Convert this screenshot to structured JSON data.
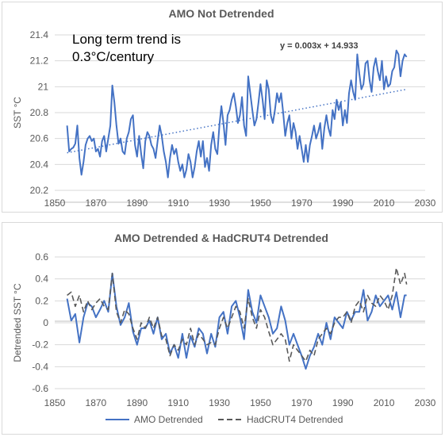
{
  "chart_data": [
    {
      "type": "line",
      "title": "AMO Not Detrended",
      "ylabel": "SST °C",
      "xlabel": "",
      "annotation": "Long term trend is\n0.3°C/century",
      "trend_label": "y = 0.003x + 14.933",
      "xlim": [
        1850,
        2030
      ],
      "ylim": [
        20.2,
        21.4
      ],
      "xticks": [
        "1850",
        "1870",
        "1890",
        "1910",
        "1930",
        "1950",
        "1970",
        "1990",
        "2010",
        "2030"
      ],
      "yticks": [
        "20.2",
        "20.4",
        "20.6",
        "20.8",
        "21",
        "21.2",
        "21.4"
      ],
      "grid": true,
      "series": [
        {
          "color": "#4472c4",
          "x": [
            1856,
            1857,
            1858,
            1859,
            1860,
            1861,
            1862,
            1863,
            1864,
            1865,
            1866,
            1867,
            1868,
            1869,
            1870,
            1871,
            1872,
            1873,
            1874,
            1875,
            1876,
            1877,
            1878,
            1879,
            1880,
            1881,
            1882,
            1883,
            1884,
            1885,
            1886,
            1887,
            1888,
            1889,
            1890,
            1891,
            1892,
            1893,
            1894,
            1895,
            1896,
            1897,
            1898,
            1899,
            1900,
            1901,
            1902,
            1903,
            1904,
            1905,
            1906,
            1907,
            1908,
            1909,
            1910,
            1911,
            1912,
            1913,
            1914,
            1915,
            1916,
            1917,
            1918,
            1919,
            1920,
            1921,
            1922,
            1923,
            1924,
            1925,
            1926,
            1927,
            1928,
            1929,
            1930,
            1931,
            1932,
            1933,
            1934,
            1935,
            1936,
            1937,
            1938,
            1939,
            1940,
            1941,
            1942,
            1943,
            1944,
            1945,
            1946,
            1947,
            1948,
            1949,
            1950,
            1951,
            1952,
            1953,
            1954,
            1955,
            1956,
            1957,
            1958,
            1959,
            1960,
            1961,
            1962,
            1963,
            1964,
            1965,
            1966,
            1967,
            1968,
            1969,
            1970,
            1971,
            1972,
            1973,
            1974,
            1975,
            1976,
            1977,
            1978,
            1979,
            1980,
            1981,
            1982,
            1983,
            1984,
            1985,
            1986,
            1987,
            1988,
            1989,
            1990,
            1991,
            1992,
            1993,
            1994,
            1995,
            1996,
            1997,
            1998,
            1999,
            2000,
            2001,
            2002,
            2003,
            2004,
            2005,
            2006,
            2007,
            2008,
            2009,
            2010,
            2011,
            2012,
            2013,
            2014,
            2015,
            2016,
            2017,
            2018,
            2019,
            2020,
            2021
          ],
          "y": [
            20.7,
            20.5,
            20.52,
            20.53,
            20.56,
            20.7,
            20.45,
            20.32,
            20.42,
            20.55,
            20.6,
            20.62,
            20.58,
            20.6,
            20.5,
            20.52,
            20.46,
            20.58,
            20.62,
            20.5,
            20.6,
            20.7,
            21.01,
            20.88,
            20.7,
            20.56,
            20.6,
            20.5,
            20.48,
            20.6,
            20.65,
            20.75,
            20.78,
            20.55,
            20.46,
            20.62,
            20.48,
            20.37,
            20.58,
            20.65,
            20.62,
            20.55,
            20.52,
            20.45,
            20.58,
            20.7,
            20.62,
            20.5,
            20.42,
            20.3,
            20.45,
            20.55,
            20.48,
            20.52,
            20.42,
            20.35,
            20.4,
            20.3,
            20.36,
            20.48,
            20.42,
            20.3,
            20.38,
            20.5,
            20.58,
            20.46,
            20.58,
            20.38,
            20.45,
            20.35,
            20.55,
            20.65,
            20.52,
            20.48,
            20.7,
            20.85,
            20.72,
            20.55,
            20.78,
            20.82,
            20.9,
            20.95,
            20.85,
            20.72,
            20.78,
            20.92,
            20.7,
            20.62,
            21.08,
            20.95,
            20.82,
            20.7,
            20.75,
            20.88,
            21.02,
            20.9,
            20.75,
            21.05,
            20.98,
            20.78,
            20.72,
            20.82,
            20.95,
            20.88,
            20.95,
            20.8,
            20.62,
            20.72,
            20.78,
            20.6,
            20.72,
            20.65,
            20.52,
            20.62,
            20.52,
            20.42,
            20.55,
            20.42,
            20.55,
            20.62,
            20.7,
            20.6,
            20.65,
            20.72,
            20.52,
            20.68,
            20.78,
            20.68,
            20.62,
            20.82,
            20.75,
            20.9,
            20.82,
            20.88,
            20.7,
            20.82,
            20.72,
            20.95,
            21.05,
            20.96,
            20.9,
            21.25,
            21.1,
            20.98,
            21.02,
            21.18,
            21.2,
            21.05,
            20.96,
            21.15,
            21.22,
            21.12,
            21.05,
            21.2,
            20.98,
            21.08,
            21.0,
            21.02,
            21.12,
            21.15,
            21.28,
            21.25,
            21.08,
            21.2,
            21.25,
            21.23
          ]
        }
      ],
      "trendline": {
        "slope": 0.003,
        "intercept": 14.933,
        "x": [
          1856,
          2021
        ],
        "color": "#4472c4",
        "style": "dotted"
      }
    },
    {
      "type": "line",
      "title": "AMO Detrended & HadCRUT4 Detrended",
      "ylabel": "Detrended SST °C",
      "xlabel": "",
      "xlim": [
        1850,
        2030
      ],
      "ylim": [
        -0.6,
        0.6
      ],
      "xticks": [
        "1850",
        "1870",
        "1890",
        "1910",
        "1930",
        "1950",
        "1970",
        "1990",
        "2010",
        "2030"
      ],
      "yticks": [
        "-0.6",
        "-0.4",
        "-0.2",
        "0",
        "0.2",
        "0.4",
        "0.6"
      ],
      "grid": true,
      "legend": "bottom",
      "series": [
        {
          "name": "AMO Detrended",
          "color": "#4472c4",
          "style": "solid",
          "x": [
            1856,
            1858,
            1860,
            1862,
            1864,
            1866,
            1868,
            1870,
            1872,
            1874,
            1876,
            1878,
            1880,
            1882,
            1884,
            1886,
            1888,
            1890,
            1892,
            1894,
            1896,
            1898,
            1900,
            1902,
            1904,
            1906,
            1908,
            1910,
            1912,
            1914,
            1916,
            1918,
            1920,
            1922,
            1924,
            1926,
            1928,
            1930,
            1932,
            1934,
            1936,
            1938,
            1940,
            1942,
            1944,
            1946,
            1948,
            1950,
            1952,
            1954,
            1956,
            1958,
            1960,
            1962,
            1964,
            1966,
            1968,
            1970,
            1972,
            1974,
            1976,
            1978,
            1980,
            1982,
            1984,
            1986,
            1988,
            1990,
            1992,
            1994,
            1996,
            1998,
            2000,
            2002,
            2004,
            2006,
            2008,
            2010,
            2012,
            2014,
            2016,
            2018,
            2020,
            2021
          ],
          "y": [
            0.22,
            0.02,
            0.08,
            -0.18,
            0.05,
            0.18,
            0.15,
            0.05,
            0.12,
            0.2,
            0.1,
            0.45,
            0.15,
            -0.02,
            0.05,
            0.18,
            -0.08,
            -0.2,
            -0.05,
            -0.05,
            0.02,
            -0.1,
            0.05,
            -0.15,
            -0.1,
            -0.28,
            -0.2,
            -0.32,
            -0.1,
            -0.32,
            -0.12,
            -0.22,
            -0.05,
            -0.1,
            -0.28,
            -0.1,
            -0.22,
            0.05,
            0.1,
            -0.1,
            0.15,
            0.2,
            0.05,
            -0.15,
            0.3,
            0.1,
            0.0,
            0.25,
            0.15,
            0.05,
            -0.1,
            -0.05,
            0.15,
            0.02,
            -0.2,
            -0.1,
            -0.2,
            -0.3,
            -0.42,
            -0.3,
            -0.22,
            -0.1,
            -0.2,
            0.0,
            -0.15,
            0.05,
            0.0,
            -0.05,
            0.1,
            0.02,
            0.1,
            0.1,
            0.3,
            0.02,
            0.1,
            0.25,
            0.15,
            0.2,
            0.25,
            0.12,
            0.28,
            0.05,
            0.25,
            0.25
          ]
        },
        {
          "name": "HadCRUT4 Detrended",
          "color": "#595959",
          "style": "dashed",
          "x": [
            1856,
            1858,
            1860,
            1862,
            1864,
            1866,
            1868,
            1870,
            1872,
            1874,
            1876,
            1878,
            1880,
            1882,
            1884,
            1886,
            1888,
            1890,
            1892,
            1894,
            1896,
            1898,
            1900,
            1902,
            1904,
            1906,
            1908,
            1910,
            1912,
            1914,
            1916,
            1918,
            1920,
            1922,
            1924,
            1926,
            1928,
            1930,
            1932,
            1934,
            1936,
            1938,
            1940,
            1942,
            1944,
            1946,
            1948,
            1950,
            1952,
            1954,
            1956,
            1958,
            1960,
            1962,
            1964,
            1966,
            1968,
            1970,
            1972,
            1974,
            1976,
            1978,
            1980,
            1982,
            1984,
            1986,
            1988,
            1990,
            1992,
            1994,
            1996,
            1998,
            2000,
            2002,
            2004,
            2006,
            2008,
            2010,
            2012,
            2014,
            2016,
            2018,
            2020,
            2021
          ],
          "y": [
            0.25,
            0.28,
            0.15,
            0.25,
            0.1,
            0.2,
            0.12,
            0.18,
            0.22,
            0.15,
            0.12,
            0.45,
            0.1,
            0.0,
            0.12,
            0.08,
            -0.05,
            -0.15,
            0.0,
            -0.05,
            0.05,
            -0.05,
            0.05,
            -0.12,
            -0.15,
            -0.3,
            -0.2,
            -0.25,
            -0.15,
            -0.2,
            -0.05,
            -0.2,
            -0.1,
            -0.15,
            -0.2,
            -0.18,
            -0.2,
            -0.05,
            0.05,
            -0.05,
            0.05,
            0.15,
            0.1,
            -0.05,
            0.22,
            0.05,
            -0.05,
            0.12,
            0.05,
            -0.08,
            -0.2,
            -0.15,
            -0.1,
            -0.15,
            -0.35,
            -0.2,
            -0.25,
            -0.3,
            -0.35,
            -0.25,
            -0.3,
            -0.15,
            -0.1,
            -0.05,
            -0.1,
            0.0,
            0.05,
            0.05,
            0.1,
            0.0,
            0.15,
            0.2,
            0.1,
            0.25,
            0.18,
            0.15,
            0.25,
            0.2,
            0.12,
            0.25,
            0.5,
            0.35,
            0.45,
            0.35
          ]
        }
      ]
    }
  ]
}
